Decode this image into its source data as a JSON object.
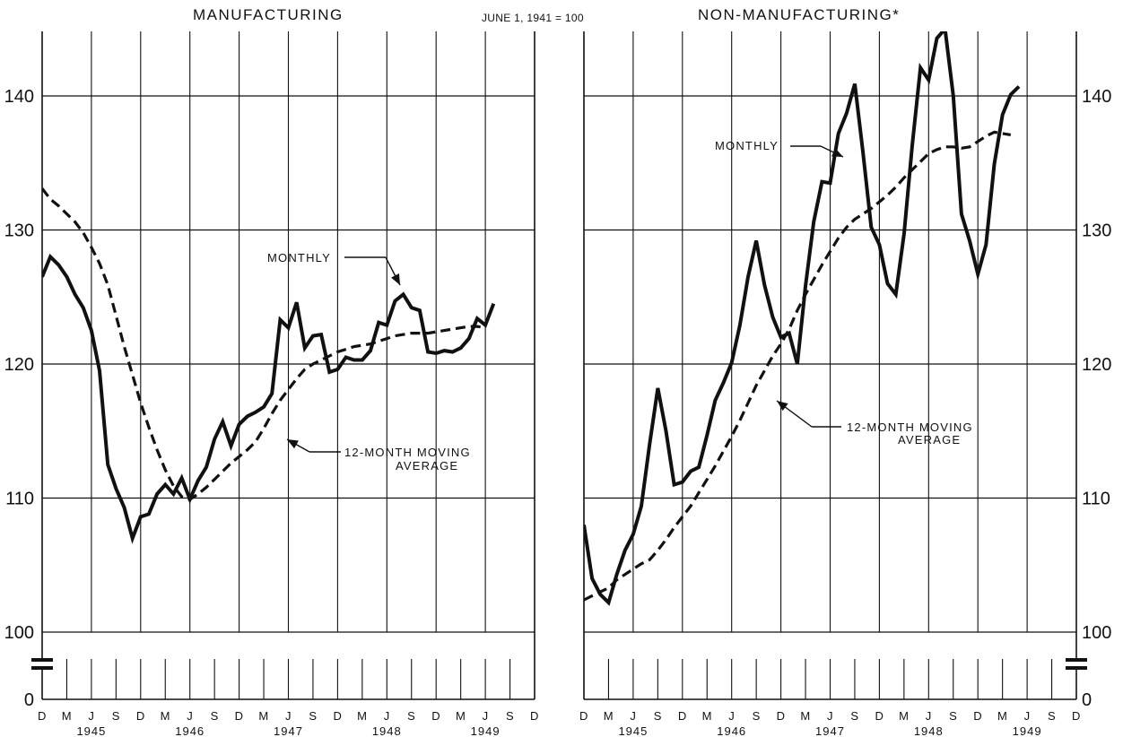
{
  "titles": {
    "left": "MANUFACTURING",
    "base": "JUNE 1, 1941 = 100",
    "right": "NON-MANUFACTURING*"
  },
  "chart_data": [
    {
      "type": "line",
      "title": "MANUFACTURING",
      "subtitle": "JUNE 1, 1941 = 100",
      "ylim": [
        100,
        145
      ],
      "yticks": [
        0,
        100,
        110,
        120,
        130,
        140
      ],
      "y_axis_break": true,
      "x_tick_labels": [
        "D",
        "M",
        "J",
        "S",
        "D",
        "M",
        "J",
        "S",
        "D",
        "M",
        "J",
        "S",
        "D",
        "M",
        "J",
        "S",
        "D",
        "M",
        "J",
        "S",
        "D"
      ],
      "x_year_labels": [
        "1945",
        "1946",
        "1947",
        "1948",
        "1949"
      ],
      "grid": true,
      "annotations": [
        "MONTHLY",
        "12-MONTH MOVING AVERAGE"
      ],
      "x_start": "1944-12",
      "series": [
        {
          "name": "MONTHLY",
          "style": "solid",
          "values": [
            126.5,
            128,
            127.4,
            126.5,
            125.2,
            124.2,
            122.5,
            119.5,
            112.5,
            110.7,
            109.3,
            107,
            108.6,
            108.8,
            110.3,
            111,
            110.3,
            111.5,
            109.9,
            111.3,
            112.3,
            114.4,
            115.7,
            113.9,
            115.5,
            116.1,
            116.4,
            116.8,
            117.8,
            123.3,
            122.7,
            124.6,
            121.2,
            122.1,
            122.2,
            119.4,
            119.6,
            120.5,
            120.3,
            120.3,
            121,
            123.1,
            122.9,
            124.7,
            125.2,
            124.2,
            124,
            120.9,
            120.8,
            121,
            120.9,
            121.2,
            121.9,
            123.4,
            122.9,
            124.5
          ]
        },
        {
          "name": "12-MONTH MOVING AVERAGE",
          "style": "dashed",
          "values": [
            133.1,
            132.3,
            131.8,
            131.2,
            130.6,
            129.8,
            128.7,
            127.5,
            125.9,
            123.6,
            121.3,
            119.2,
            117.1,
            115.3,
            113.6,
            112.1,
            110.9,
            110.1,
            109.9,
            110.3,
            110.8,
            111.4,
            112,
            112.6,
            113.1,
            113.6,
            114.2,
            115.2,
            116.3,
            117.3,
            118.1,
            118.9,
            119.6,
            120,
            120.3,
            120.6,
            120.9,
            121.1,
            121.3,
            121.4,
            121.5,
            121.7,
            121.9,
            122.1,
            122.2,
            122.3,
            122.3,
            122.3,
            122.4,
            122.5,
            122.6,
            122.7,
            122.8,
            122.8,
            122.7
          ]
        }
      ]
    },
    {
      "type": "line",
      "title": "NON-MANUFACTURING*",
      "subtitle": "JUNE 1, 1941 = 100",
      "ylim": [
        100,
        145
      ],
      "yticks": [
        0,
        100,
        110,
        120,
        130,
        140
      ],
      "y_axis_break": true,
      "x_tick_labels": [
        "D",
        "M",
        "J",
        "S",
        "D",
        "M",
        "J",
        "S",
        "D",
        "M",
        "J",
        "S",
        "D",
        "M",
        "J",
        "S",
        "D",
        "M",
        "J",
        "S",
        "D"
      ],
      "x_year_labels": [
        "1945",
        "1946",
        "1947",
        "1948",
        "1949"
      ],
      "grid": true,
      "annotations": [
        "MONTHLY",
        "12-MONTH MOVING AVERAGE"
      ],
      "x_start": "1944-12",
      "series": [
        {
          "name": "MONTHLY",
          "style": "solid",
          "values": [
            108,
            104,
            102.8,
            102.2,
            104.3,
            106.1,
            107.3,
            109.4,
            114,
            118.2,
            115,
            111,
            111.2,
            112,
            112.3,
            114.7,
            117.3,
            118.6,
            120.1,
            122.9,
            126.5,
            129.2,
            125.9,
            123.5,
            122,
            122.3,
            120,
            125.8,
            130.6,
            133.6,
            133.5,
            137.2,
            138.7,
            140.9,
            135.8,
            130.2,
            128.9,
            126,
            125.2,
            129.7,
            136.3,
            142.1,
            141.2,
            144.3,
            145,
            140,
            131.2,
            129.2,
            126.7,
            128.9,
            134.9,
            138.6,
            140.1,
            140.7
          ]
        },
        {
          "name": "12-MONTH MOVING AVERAGE",
          "style": "dashed",
          "values": [
            102.4,
            102.7,
            103,
            103.3,
            103.9,
            104.3,
            104.7,
            105.1,
            105.4,
            106.1,
            106.9,
            107.8,
            108.6,
            109.4,
            110.4,
            111.4,
            112.4,
            113.5,
            114.6,
            115.8,
            117.1,
            118.4,
            119.5,
            120.6,
            121.5,
            122.6,
            124,
            125.2,
            126.3,
            127.4,
            128.4,
            129.4,
            130.2,
            130.8,
            131.2,
            131.6,
            132.1,
            132.6,
            133.2,
            133.9,
            134.5,
            135.1,
            135.7,
            136,
            136.2,
            136.2,
            136.1,
            136.2,
            136.6,
            137,
            137.3,
            137.2,
            137.1
          ]
        }
      ]
    }
  ]
}
